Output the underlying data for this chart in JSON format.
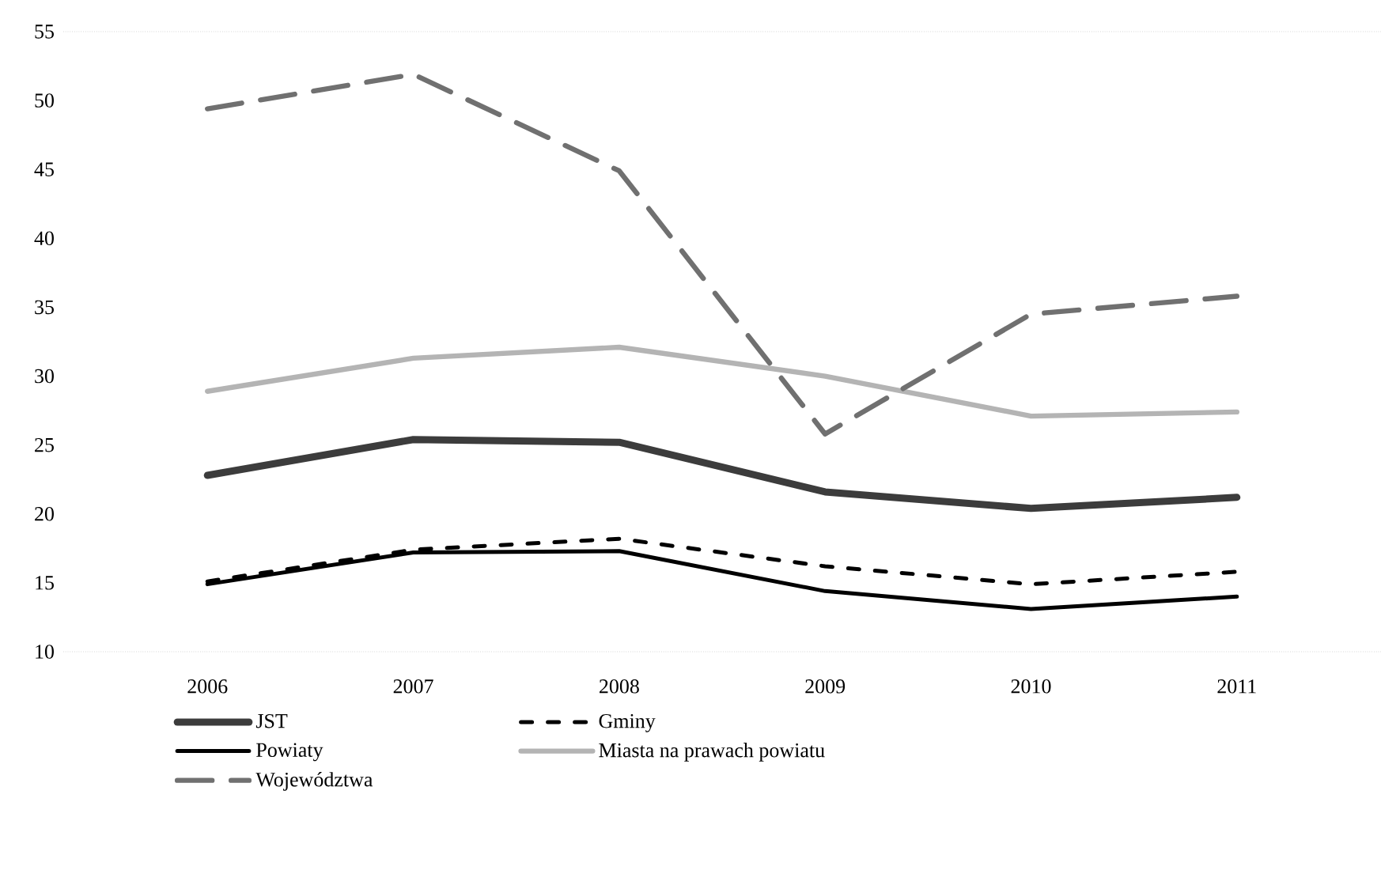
{
  "chart_data": {
    "type": "line",
    "categories": [
      "2006",
      "2007",
      "2008",
      "2009",
      "2010",
      "2011"
    ],
    "ylim": [
      10,
      55
    ],
    "yticks": [
      10,
      15,
      20,
      25,
      30,
      35,
      40,
      45,
      50,
      55
    ],
    "grid": false,
    "legend": "bottom",
    "marker": "none",
    "series": [
      {
        "name": "JST",
        "color": "#3c3c3c",
        "line_style": "solid",
        "values": [
          22.8,
          25.4,
          25.2,
          21.6,
          20.4,
          21.2
        ]
      },
      {
        "name": "Gminy",
        "color": "#000000",
        "line_style": "dashed",
        "values": [
          15.1,
          17.4,
          18.2,
          16.2,
          14.9,
          15.8
        ]
      },
      {
        "name": "Powiaty",
        "color": "#000000",
        "line_style": "solid",
        "values": [
          14.9,
          17.2,
          17.3,
          14.4,
          13.1,
          14.0
        ]
      },
      {
        "name": "Miasta na prawach powiatu",
        "color": "#b4b4b4",
        "line_style": "solid",
        "values": [
          28.9,
          31.3,
          32.1,
          30.0,
          27.1,
          27.4
        ]
      },
      {
        "name": "Województwa",
        "color": "#707070",
        "line_style": "longdash",
        "values": [
          49.4,
          51.9,
          44.9,
          25.8,
          34.5,
          35.8
        ]
      }
    ]
  }
}
